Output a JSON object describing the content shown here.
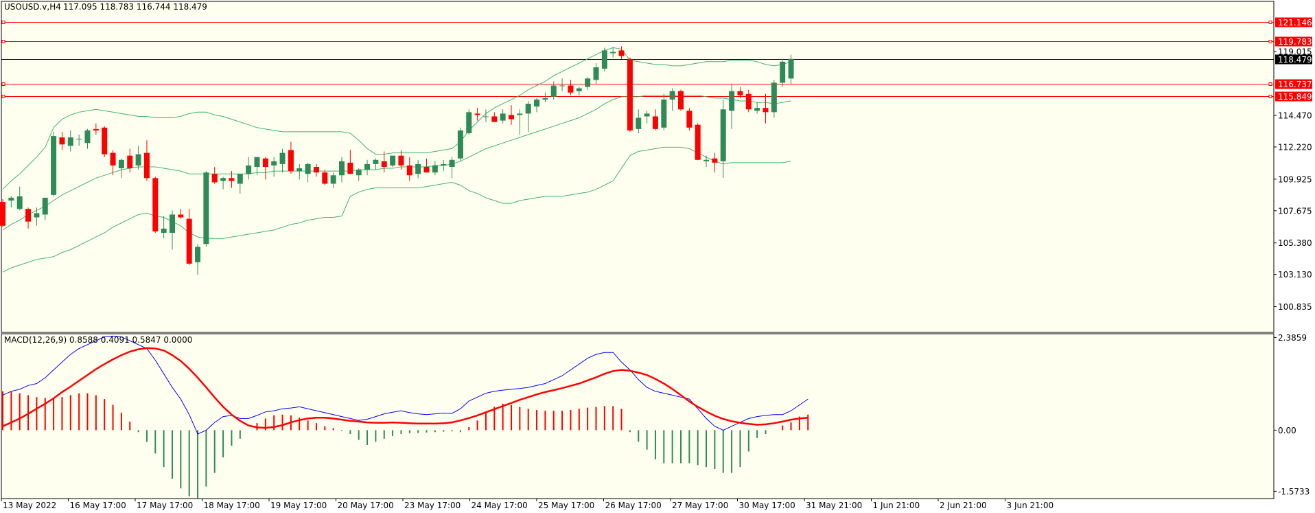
{
  "header": {
    "symbol": "USOUSD.v,H4",
    "ohlc": "117.095 118.783 116.744 118.479"
  },
  "macd_label": "MACD(12,26,9) 0.8588 0.4091 0.5847 0.0000",
  "colors": {
    "background": "#fffff0",
    "bull": "#2e8b57",
    "bear": "#ff0000",
    "bands": "#3cb371",
    "level": "#ff0000",
    "macd_line": "#0000ff",
    "signal_line": "#ff0000"
  },
  "chart_data": [
    {
      "type": "candlestick",
      "title": "USOUSD.v,H4",
      "ylim": [
        99.0,
        122.6
      ],
      "y_ticks": [
        "119.015",
        "114.470",
        "112.220",
        "109.925",
        "107.675",
        "105.380",
        "103.130",
        "100.835"
      ],
      "x_ticks": [
        "13 May 2022",
        "16 May 17:00",
        "17 May 17:00",
        "18 May 17:00",
        "19 May 17:00",
        "20 May 17:00",
        "23 May 17:00",
        "24 May 17:00",
        "25 May 17:00",
        "26 May 17:00",
        "27 May 17:00",
        "30 May 17:00",
        "31 May 21:00",
        "1 Jun 21:00",
        "2 Jun 21:00",
        "3 Jun 21:00"
      ],
      "levels": [
        {
          "label": "121.146",
          "value": 121.146
        },
        {
          "label": "119.783",
          "value": 119.783
        },
        {
          "label": "116.737",
          "value": 116.737
        },
        {
          "label": "115.849",
          "value": 115.849
        }
      ],
      "current_price": {
        "label": "118.479",
        "value": 118.479
      },
      "candles": [
        [
          108.3,
          108.5,
          106.5,
          106.6
        ],
        [
          108.4,
          108.7,
          107.9,
          108.6
        ],
        [
          107.8,
          109.4,
          107.7,
          108.7
        ],
        [
          107.8,
          107.9,
          106.4,
          106.9
        ],
        [
          107.2,
          107.9,
          106.6,
          107.5
        ],
        [
          107.4,
          108.6,
          107.0,
          108.6
        ],
        [
          108.8,
          113.3,
          108.7,
          113.0
        ],
        [
          112.9,
          113.3,
          112.0,
          112.4
        ],
        [
          112.3,
          113.4,
          111.9,
          112.9
        ],
        [
          112.8,
          113.1,
          112.3,
          112.8
        ],
        [
          112.5,
          113.5,
          112.1,
          113.4
        ],
        [
          113.5,
          113.9,
          113.1,
          113.4
        ],
        [
          113.6,
          113.7,
          111.5,
          111.7
        ],
        [
          111.8,
          112.0,
          110.2,
          110.9
        ],
        [
          110.7,
          111.4,
          110.0,
          111.3
        ],
        [
          111.6,
          112.1,
          110.4,
          110.7
        ],
        [
          110.9,
          112.3,
          110.6,
          111.7
        ],
        [
          111.8,
          112.7,
          109.8,
          110.0
        ],
        [
          110.0,
          110.1,
          106.1,
          106.2
        ],
        [
          106.1,
          107.3,
          105.7,
          106.4
        ],
        [
          106.1,
          107.7,
          104.9,
          107.4
        ],
        [
          107.4,
          107.8,
          107.1,
          107.2
        ],
        [
          107.1,
          107.8,
          103.8,
          103.9
        ],
        [
          104.0,
          105.3,
          103.1,
          105.1
        ],
        [
          105.3,
          110.5,
          105.1,
          110.4
        ],
        [
          110.3,
          110.8,
          109.6,
          109.7
        ],
        [
          109.8,
          110.1,
          109.2,
          110.0
        ],
        [
          110.0,
          110.5,
          109.3,
          109.8
        ],
        [
          109.6,
          110.3,
          108.9,
          110.3
        ],
        [
          110.3,
          111.5,
          109.9,
          110.9
        ],
        [
          110.8,
          111.5,
          110.2,
          111.5
        ],
        [
          111.4,
          111.5,
          109.9,
          110.8
        ],
        [
          110.9,
          111.5,
          110.1,
          111.2
        ],
        [
          111.0,
          112.1,
          110.4,
          111.8
        ],
        [
          112.0,
          112.6,
          110.3,
          110.5
        ],
        [
          110.5,
          111.0,
          109.9,
          110.7
        ],
        [
          110.3,
          111.1,
          109.7,
          111.0
        ],
        [
          110.8,
          111.0,
          110.1,
          110.4
        ],
        [
          110.4,
          110.6,
          109.5,
          109.6
        ],
        [
          109.6,
          110.4,
          109.3,
          110.2
        ],
        [
          110.2,
          111.5,
          109.7,
          111.2
        ],
        [
          111.1,
          112.0,
          110.4,
          110.3
        ],
        [
          110.2,
          110.7,
          109.8,
          110.6
        ],
        [
          110.6,
          111.3,
          110.2,
          111.0
        ],
        [
          111.0,
          111.4,
          110.6,
          111.3
        ],
        [
          111.2,
          111.9,
          110.4,
          110.8
        ],
        [
          110.9,
          111.6,
          110.8,
          111.6
        ],
        [
          111.6,
          112.0,
          110.6,
          110.9
        ],
        [
          110.9,
          111.5,
          109.8,
          110.2
        ],
        [
          110.3,
          111.3,
          110.0,
          111.0
        ],
        [
          110.8,
          111.4,
          110.4,
          110.4
        ],
        [
          110.4,
          111.2,
          110.2,
          110.9
        ],
        [
          110.9,
          111.3,
          110.5,
          111.0
        ],
        [
          110.8,
          111.5,
          110.0,
          111.3
        ],
        [
          111.4,
          113.6,
          111.2,
          113.4
        ],
        [
          113.2,
          114.9,
          113.1,
          114.7
        ],
        [
          114.6,
          115.0,
          114.1,
          114.5
        ],
        [
          114.4,
          114.9,
          114.0,
          114.4
        ],
        [
          114.4,
          114.7,
          114.0,
          114.0
        ],
        [
          114.1,
          114.9,
          113.9,
          114.6
        ],
        [
          114.5,
          115.2,
          113.8,
          114.2
        ],
        [
          114.5,
          114.9,
          113.1,
          114.6
        ],
        [
          114.6,
          115.5,
          113.3,
          115.3
        ],
        [
          115.1,
          115.7,
          114.7,
          115.6
        ],
        [
          115.6,
          116.1,
          115.4,
          115.7
        ],
        [
          115.8,
          116.9,
          115.6,
          116.6
        ],
        [
          116.6,
          117.1,
          116.2,
          116.6
        ],
        [
          116.6,
          117.0,
          115.9,
          116.1
        ],
        [
          116.2,
          116.5,
          115.9,
          116.4
        ],
        [
          116.5,
          117.2,
          116.3,
          117.1
        ],
        [
          117.0,
          118.2,
          116.7,
          117.9
        ],
        [
          117.8,
          119.3,
          117.6,
          119.1
        ],
        [
          118.9,
          119.3,
          118.6,
          119.0
        ],
        [
          119.1,
          119.4,
          118.5,
          118.7
        ],
        [
          118.5,
          118.6,
          113.3,
          113.4
        ],
        [
          113.5,
          114.9,
          113.2,
          114.3
        ],
        [
          114.4,
          114.8,
          113.9,
          114.6
        ],
        [
          114.4,
          114.9,
          113.4,
          113.5
        ],
        [
          113.6,
          116.0,
          113.4,
          115.6
        ],
        [
          115.6,
          116.4,
          114.8,
          116.2
        ],
        [
          116.2,
          116.3,
          114.8,
          114.9
        ],
        [
          114.8,
          115.0,
          113.4,
          113.6
        ],
        [
          113.8,
          113.9,
          111.3,
          111.3
        ],
        [
          111.2,
          111.6,
          110.8,
          111.3
        ],
        [
          111.4,
          111.8,
          110.4,
          111.1
        ],
        [
          111.2,
          115.6,
          110.0,
          114.9
        ],
        [
          114.8,
          116.7,
          113.5,
          116.2
        ],
        [
          116.2,
          116.5,
          115.7,
          115.9
        ],
        [
          116.0,
          116.3,
          114.7,
          114.9
        ],
        [
          114.8,
          115.4,
          114.6,
          115.0
        ],
        [
          115.0,
          116.0,
          113.9,
          114.7
        ],
        [
          114.7,
          117.0,
          114.3,
          116.8
        ],
        [
          116.8,
          118.5,
          116.5,
          118.3
        ],
        [
          117.1,
          118.8,
          116.7,
          118.5
        ]
      ],
      "bollinger": {
        "upper": [
          109.2,
          109.8,
          110.3,
          110.9,
          111.5,
          112.2,
          113.6,
          114.2,
          114.5,
          114.7,
          114.8,
          114.9,
          114.8,
          114.7,
          114.6,
          114.5,
          114.4,
          114.4,
          114.3,
          114.3,
          114.3,
          114.4,
          114.6,
          114.7,
          114.7,
          114.5,
          114.4,
          114.2,
          114.0,
          113.8,
          113.6,
          113.5,
          113.4,
          113.3,
          113.3,
          113.3,
          113.3,
          113.3,
          113.3,
          113.3,
          113.3,
          113.2,
          112.7,
          112.1,
          111.7,
          111.7,
          111.8,
          111.8,
          111.8,
          111.8,
          111.8,
          111.9,
          112.0,
          112.1,
          112.6,
          113.4,
          114.0,
          114.6,
          115.0,
          115.3,
          115.6,
          115.9,
          116.3,
          116.6,
          116.9,
          117.3,
          117.6,
          117.9,
          118.2,
          118.5,
          118.8,
          119.1,
          119.3,
          119.2,
          118.4,
          118.3,
          118.2,
          118.1,
          118.1,
          118.0,
          118.0,
          118.1,
          118.2,
          118.3,
          118.3,
          118.3,
          118.4,
          118.4,
          118.4,
          118.3,
          118.1,
          118.0,
          118.1,
          118.3
        ],
        "middle": [
          106.3,
          106.7,
          107.0,
          107.4,
          107.7,
          108.0,
          108.4,
          108.8,
          109.1,
          109.4,
          109.7,
          110.0,
          110.2,
          110.4,
          110.6,
          110.7,
          110.8,
          110.8,
          110.8,
          110.7,
          110.6,
          110.5,
          110.3,
          110.3,
          110.3,
          110.3,
          110.3,
          110.3,
          110.3,
          110.3,
          110.4,
          110.4,
          110.5,
          110.5,
          110.5,
          110.5,
          110.5,
          110.5,
          110.5,
          110.5,
          110.5,
          110.5,
          110.6,
          110.6,
          110.6,
          110.7,
          110.7,
          110.8,
          110.8,
          110.8,
          110.8,
          110.9,
          110.9,
          111.0,
          111.2,
          111.5,
          111.8,
          112.1,
          112.3,
          112.5,
          112.7,
          112.9,
          113.1,
          113.3,
          113.5,
          113.7,
          113.9,
          114.1,
          114.3,
          114.6,
          114.9,
          115.3,
          115.6,
          115.8,
          115.8,
          115.8,
          115.9,
          115.9,
          115.9,
          115.9,
          115.9,
          115.9,
          115.9,
          115.8,
          115.7,
          115.7,
          115.6,
          115.5,
          115.5,
          115.4,
          115.4,
          115.3,
          115.4,
          115.5
        ],
        "lower": [
          103.3,
          103.6,
          103.8,
          104.0,
          104.2,
          104.3,
          104.4,
          104.7,
          104.9,
          105.2,
          105.5,
          105.8,
          106.1,
          106.5,
          106.8,
          107.1,
          107.4,
          107.5,
          107.3,
          107.2,
          106.9,
          106.6,
          106.1,
          105.8,
          105.7,
          105.7,
          105.7,
          105.8,
          105.9,
          106.0,
          106.1,
          106.2,
          106.3,
          106.5,
          106.7,
          106.8,
          107.0,
          107.1,
          107.2,
          107.2,
          107.3,
          108.7,
          109.0,
          109.2,
          109.3,
          109.3,
          109.3,
          109.3,
          109.3,
          109.3,
          109.4,
          109.5,
          109.6,
          109.7,
          109.5,
          109.1,
          108.9,
          108.6,
          108.4,
          108.2,
          108.2,
          108.4,
          108.5,
          108.6,
          108.7,
          108.7,
          108.7,
          108.8,
          108.9,
          109.0,
          109.2,
          109.5,
          109.8,
          110.7,
          111.6,
          111.9,
          112.0,
          112.1,
          112.2,
          112.2,
          112.2,
          112.1,
          111.8,
          111.5,
          111.2,
          111.0,
          111.1,
          111.1,
          111.1,
          111.1,
          111.1,
          111.1,
          111.1,
          111.2
        ]
      }
    },
    {
      "type": "macd",
      "title": "MACD(12,26,9)",
      "ylim": [
        -1.76,
        2.48
      ],
      "y_ticks": [
        "2.3859",
        "0.00",
        "-1.5733"
      ],
      "macd": [
        0.9,
        1.0,
        1.05,
        1.15,
        1.2,
        1.35,
        1.55,
        1.75,
        1.95,
        2.1,
        2.2,
        2.3,
        2.4,
        2.42,
        2.4,
        2.3,
        2.2,
        2.1,
        1.8,
        1.45,
        1.1,
        0.8,
        0.4,
        -0.1,
        0.0,
        0.2,
        0.35,
        0.38,
        0.3,
        0.3,
        0.38,
        0.47,
        0.5,
        0.55,
        0.57,
        0.6,
        0.55,
        0.5,
        0.45,
        0.4,
        0.35,
        0.3,
        0.25,
        0.28,
        0.35,
        0.42,
        0.46,
        0.5,
        0.45,
        0.42,
        0.4,
        0.42,
        0.44,
        0.43,
        0.55,
        0.75,
        0.85,
        0.95,
        1.0,
        1.03,
        1.05,
        1.07,
        1.1,
        1.15,
        1.2,
        1.3,
        1.4,
        1.55,
        1.7,
        1.85,
        1.95,
        2.0,
        2.0,
        1.75,
        1.55,
        1.3,
        1.1,
        1.0,
        0.95,
        0.9,
        0.85,
        0.8,
        0.55,
        0.3,
        0.1,
        0.0,
        0.1,
        0.2,
        0.3,
        0.35,
        0.38,
        0.4,
        0.4,
        0.5,
        0.65,
        0.8
      ],
      "signal": [
        0.1,
        0.2,
        0.3,
        0.42,
        0.55,
        0.68,
        0.82,
        0.98,
        1.12,
        1.27,
        1.42,
        1.57,
        1.7,
        1.82,
        1.93,
        2.02,
        2.08,
        2.11,
        2.1,
        2.05,
        1.93,
        1.78,
        1.58,
        1.35,
        1.1,
        0.84,
        0.6,
        0.4,
        0.24,
        0.12,
        0.07,
        0.06,
        0.08,
        0.13,
        0.2,
        0.26,
        0.3,
        0.32,
        0.32,
        0.3,
        0.27,
        0.24,
        0.22,
        0.2,
        0.19,
        0.19,
        0.2,
        0.19,
        0.18,
        0.17,
        0.17,
        0.17,
        0.18,
        0.2,
        0.25,
        0.31,
        0.38,
        0.46,
        0.54,
        0.62,
        0.7,
        0.78,
        0.85,
        0.92,
        0.98,
        1.03,
        1.08,
        1.14,
        1.2,
        1.28,
        1.36,
        1.45,
        1.52,
        1.55,
        1.53,
        1.48,
        1.42,
        1.32,
        1.2,
        1.06,
        0.9,
        0.74,
        0.6,
        0.48,
        0.37,
        0.29,
        0.23,
        0.19,
        0.16,
        0.14,
        0.15,
        0.18,
        0.22,
        0.27,
        0.3,
        0.32
      ],
      "histogram": [
        1.0,
        1.0,
        0.95,
        0.9,
        0.85,
        0.83,
        0.82,
        0.85,
        0.9,
        0.95,
        0.95,
        0.9,
        0.8,
        0.65,
        0.45,
        0.22,
        -0.05,
        -0.3,
        -0.6,
        -0.95,
        -1.25,
        -1.5,
        -1.7,
        -1.75,
        -1.45,
        -1.1,
        -0.7,
        -0.4,
        -0.22,
        0.0,
        0.18,
        0.3,
        0.38,
        0.4,
        0.38,
        0.32,
        0.25,
        0.18,
        0.1,
        0.05,
        -0.02,
        -0.1,
        -0.25,
        -0.38,
        -0.3,
        -0.22,
        -0.15,
        -0.1,
        -0.08,
        -0.07,
        -0.06,
        -0.05,
        -0.04,
        -0.03,
        -0.05,
        0.08,
        0.25,
        0.45,
        0.6,
        0.68,
        0.65,
        0.6,
        0.55,
        0.52,
        0.5,
        0.5,
        0.5,
        0.52,
        0.55,
        0.58,
        0.6,
        0.62,
        0.62,
        0.55,
        -0.05,
        -0.3,
        -0.5,
        -0.75,
        -0.85,
        -0.85,
        -0.85,
        -0.85,
        -0.9,
        -0.95,
        -1.0,
        -1.1,
        -1.1,
        -0.95,
        -0.55,
        -0.2,
        -0.1,
        0.0,
        0.12,
        0.2,
        0.35,
        0.4
      ]
    }
  ]
}
